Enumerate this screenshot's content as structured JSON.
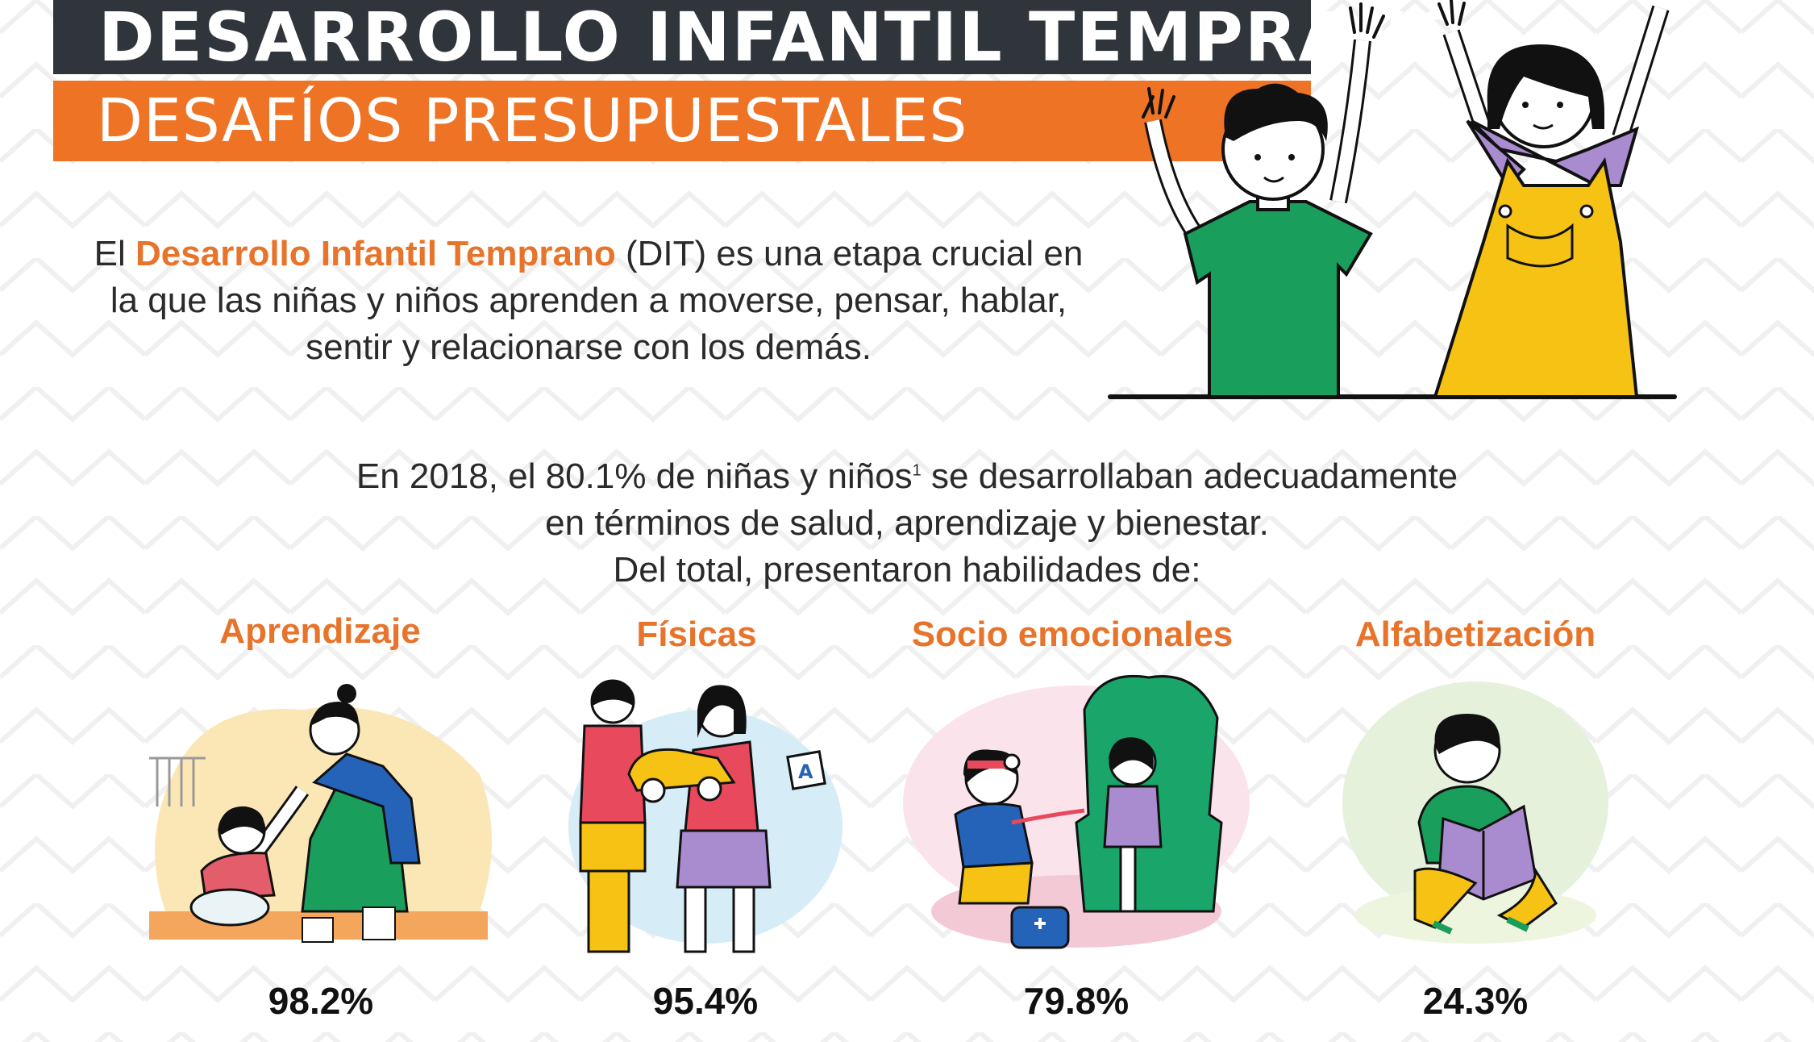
{
  "header": {
    "title": "DESARROLLO INFANTIL TEMPRANO",
    "subtitle": "DESAFÍOS PRESUPUESTALES"
  },
  "intro": {
    "prefix": "El ",
    "highlight": "Desarrollo Infantil Temprano",
    "suffix": " (DIT) es una etapa crucial en la que las niñas y niños aprenden a moverse, pensar, hablar, sentir y relacionarse con los demás."
  },
  "stat": {
    "line1_a": "En 2018, el 80.1% de niñas y niños",
    "footnote": "1",
    "line1_b": " se desarrollaban adecuadamente",
    "line2": "en términos de salud, aprendizaje y bienestar.",
    "line3": "Del total, presentaron habilidades de:"
  },
  "categories": [
    {
      "label": "Aprendizaje",
      "value": "98.2%",
      "illustration": "mother-child-cooking-illustration"
    },
    {
      "label": "Físicas",
      "value": "95.4%",
      "illustration": "kids-playing-toy-car-illustration"
    },
    {
      "label": "Socio emocionales",
      "value": "79.8%",
      "illustration": "kids-playing-doctor-illustration"
    },
    {
      "label": "Alfabetización",
      "value": "24.3%",
      "illustration": "child-reading-book-illustration"
    }
  ],
  "colors": {
    "accent": "#ef7325",
    "dark": "#2f353b"
  }
}
